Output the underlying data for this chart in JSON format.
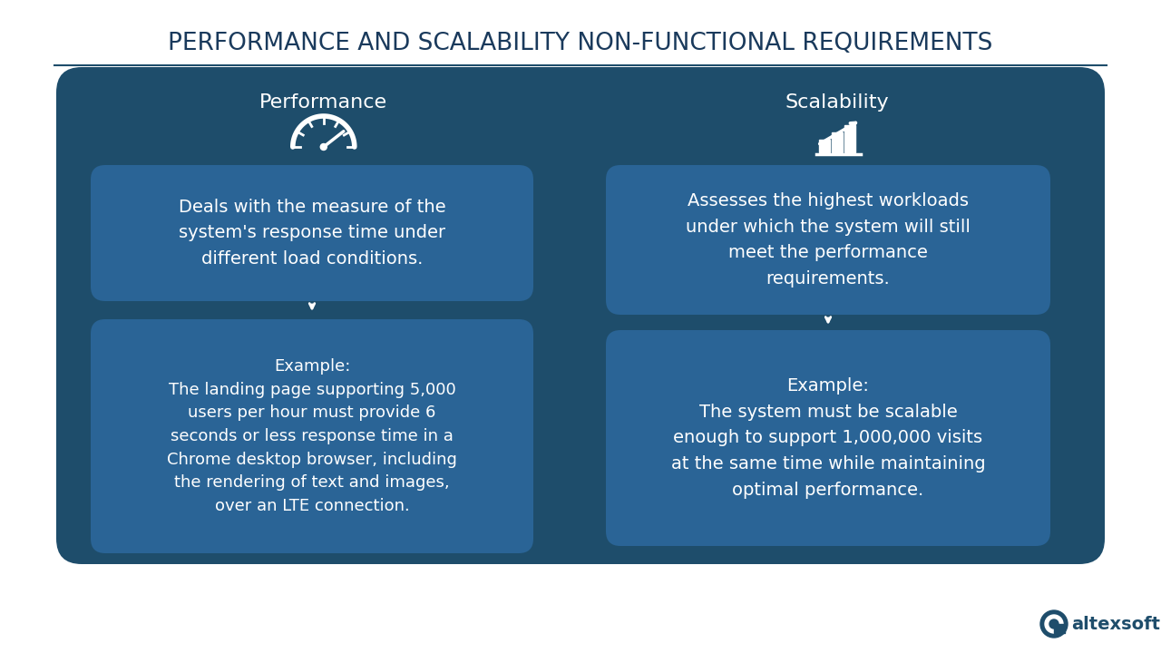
{
  "title": "PERFORMANCE AND SCALABILITY NON-FUNCTIONAL REQUIREMENTS",
  "title_color": "#1a3a5c",
  "title_fontsize": 19,
  "bg_color": "#ffffff",
  "outer_box_color": "#1e4d6b",
  "inner_box_color": "#2a6496",
  "left_header": "Performance",
  "right_header": "Scalability",
  "left_desc": "Deals with the measure of the\nsystem's response time under\ndifferent load conditions.",
  "right_desc": "Assesses the highest workloads\nunder which the system will still\nmeet the performance\nrequirements.",
  "left_example": "Example:\nThe landing page supporting 5,000\nusers per hour must provide 6\nseconds or less response time in a\nChrome desktop browser, including\nthe rendering of text and images,\nover an LTE connection.",
  "right_example": "Example:\nThe system must be scalable\nenough to support 1,000,000 visits\nat the same time while maintaining\noptimal performance.",
  "text_color": "#ffffff",
  "logo_text": "altexsoft",
  "arrow_color": "#ffffff"
}
